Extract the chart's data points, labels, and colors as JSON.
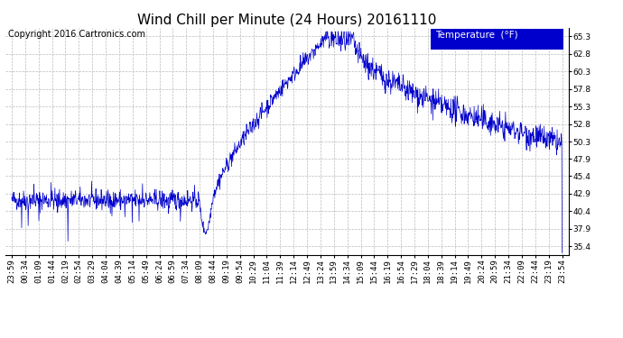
{
  "title": "Wind Chill per Minute (24 Hours) 20161110",
  "copyright_text": "Copyright 2016 Cartronics.com",
  "legend_label": "Temperature  (°F)",
  "line_color": "#0000cc",
  "background_color": "#ffffff",
  "plot_bg_color": "#ffffff",
  "grid_color": "#bbbbbb",
  "legend_bg": "#0000cc",
  "legend_text_color": "#ffffff",
  "ytick_labels": [
    "35.4",
    "37.9",
    "40.4",
    "42.9",
    "45.4",
    "47.9",
    "50.3",
    "52.8",
    "55.3",
    "57.8",
    "60.3",
    "62.8",
    "65.3"
  ],
  "ytick_values": [
    35.4,
    37.9,
    40.4,
    42.9,
    45.4,
    47.9,
    50.3,
    52.8,
    55.3,
    57.8,
    60.3,
    62.8,
    65.3
  ],
  "ymin": 34.15,
  "ymax": 66.55,
  "xtick_labels": [
    "23:59",
    "00:34",
    "01:09",
    "01:44",
    "02:19",
    "02:54",
    "03:29",
    "04:04",
    "04:39",
    "05:14",
    "05:49",
    "06:24",
    "06:59",
    "07:34",
    "08:09",
    "08:44",
    "09:19",
    "09:54",
    "10:29",
    "11:04",
    "11:39",
    "12:14",
    "12:49",
    "13:24",
    "13:59",
    "14:34",
    "15:09",
    "15:44",
    "16:19",
    "16:54",
    "17:29",
    "18:04",
    "18:39",
    "19:14",
    "19:49",
    "20:24",
    "20:59",
    "21:34",
    "22:09",
    "22:44",
    "23:19",
    "23:54"
  ],
  "title_fontsize": 11,
  "copyright_fontsize": 7,
  "tick_fontsize": 6.5,
  "legend_fontsize": 7.5
}
